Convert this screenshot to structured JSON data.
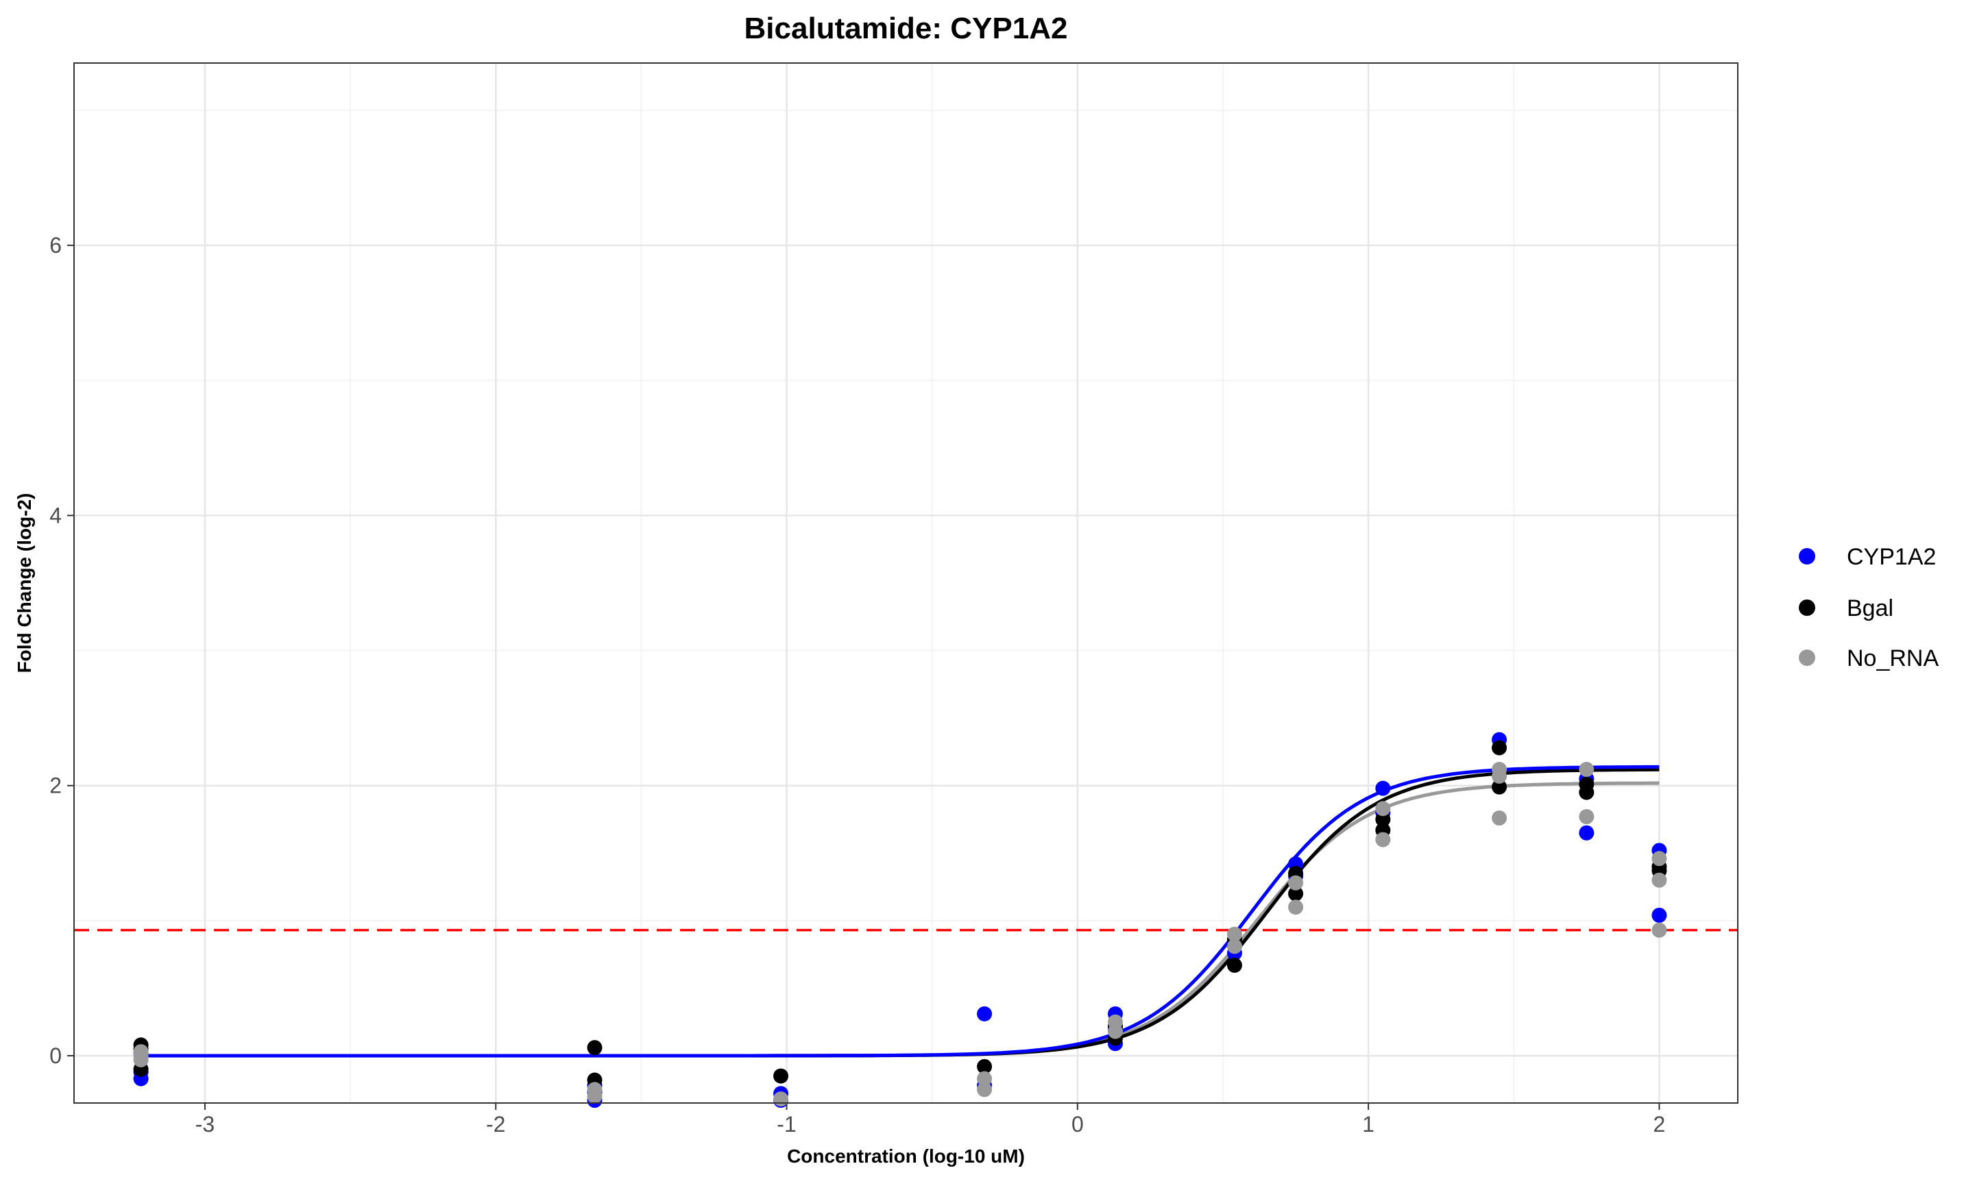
{
  "chart_data": {
    "type": "scatter",
    "title": "Bicalutamide: CYP1A2",
    "xlabel": "Concentration (log-10 uM)",
    "ylabel": "Fold Change (log-2)",
    "xlim": [
      -3.45,
      2.27
    ],
    "ylim": [
      -0.35,
      7.35
    ],
    "x_ticks": [
      -3,
      -2,
      -1,
      0,
      1,
      2
    ],
    "y_ticks": [
      0,
      2,
      4,
      6
    ],
    "x_tick_labels": [
      "-3",
      "-2",
      "-1",
      "0",
      "1",
      "2"
    ],
    "y_tick_labels": [
      "0",
      "2",
      "4",
      "6"
    ],
    "grid": true,
    "legend_position": "right",
    "threshold_line": {
      "y": 0.93,
      "color": "#ff0000",
      "style": "dashed"
    },
    "series": [
      {
        "name": "CYP1A2",
        "color": "#0000ff",
        "points": [
          [
            -3.22,
            -0.17
          ],
          [
            -3.22,
            -0.12
          ],
          [
            -3.22,
            0.02
          ],
          [
            -1.66,
            -0.27
          ],
          [
            -1.66,
            -0.22
          ],
          [
            -1.66,
            -0.33
          ],
          [
            -1.02,
            -0.28
          ],
          [
            -1.02,
            -0.33
          ],
          [
            -0.32,
            0.31
          ],
          [
            -0.32,
            -0.22
          ],
          [
            0.13,
            0.31
          ],
          [
            0.13,
            0.09
          ],
          [
            0.13,
            0.2
          ],
          [
            0.54,
            0.76
          ],
          [
            0.54,
            0.82
          ],
          [
            0.75,
            1.42
          ],
          [
            0.75,
            1.33
          ],
          [
            1.05,
            1.98
          ],
          [
            1.05,
            1.8
          ],
          [
            1.45,
            2.34
          ],
          [
            1.45,
            2.1
          ],
          [
            1.75,
            1.65
          ],
          [
            1.75,
            2.05
          ],
          [
            2.0,
            1.52
          ],
          [
            2.0,
            1.04
          ]
        ],
        "curve": {
          "bottom": 0.0,
          "top": 2.14,
          "ec50": 0.6,
          "slope": 2.3
        }
      },
      {
        "name": "Bgal",
        "color": "#000000",
        "points": [
          [
            -3.22,
            0.08
          ],
          [
            -3.22,
            -0.1
          ],
          [
            -3.22,
            0.05
          ],
          [
            -1.66,
            0.06
          ],
          [
            -1.66,
            -0.18
          ],
          [
            -1.02,
            -0.15
          ],
          [
            -0.32,
            -0.08
          ],
          [
            0.13,
            0.13
          ],
          [
            0.13,
            0.22
          ],
          [
            0.54,
            0.67
          ],
          [
            0.54,
            0.86
          ],
          [
            0.75,
            1.2
          ],
          [
            0.75,
            1.35
          ],
          [
            1.05,
            1.67
          ],
          [
            1.05,
            1.75
          ],
          [
            1.45,
            2.28
          ],
          [
            1.45,
            1.99
          ],
          [
            1.45,
            2.09
          ],
          [
            1.75,
            1.95
          ],
          [
            1.75,
            2.01
          ],
          [
            2.0,
            1.37
          ],
          [
            2.0,
            1.4
          ]
        ],
        "curve": {
          "bottom": 0.0,
          "top": 2.12,
          "ec50": 0.65,
          "slope": 2.3
        }
      },
      {
        "name": "No_RNA",
        "color": "#999999",
        "points": [
          [
            -3.22,
            0.03
          ],
          [
            -3.22,
            -0.03
          ],
          [
            -3.22,
            0.0
          ],
          [
            -1.66,
            -0.25
          ],
          [
            -1.66,
            -0.3
          ],
          [
            -1.02,
            -0.32
          ],
          [
            -0.32,
            -0.25
          ],
          [
            -0.32,
            -0.17
          ],
          [
            0.13,
            0.25
          ],
          [
            0.13,
            0.18
          ],
          [
            0.54,
            0.9
          ],
          [
            0.54,
            0.81
          ],
          [
            0.75,
            1.1
          ],
          [
            0.75,
            1.28
          ],
          [
            1.05,
            1.6
          ],
          [
            1.05,
            1.83
          ],
          [
            1.45,
            1.76
          ],
          [
            1.45,
            2.07
          ],
          [
            1.45,
            2.12
          ],
          [
            1.75,
            1.77
          ],
          [
            1.75,
            2.12
          ],
          [
            2.0,
            1.3
          ],
          [
            2.0,
            1.46
          ],
          [
            2.0,
            0.93
          ]
        ],
        "curve": {
          "bottom": 0.0,
          "top": 2.02,
          "ec50": 0.62,
          "slope": 2.3
        }
      }
    ]
  }
}
